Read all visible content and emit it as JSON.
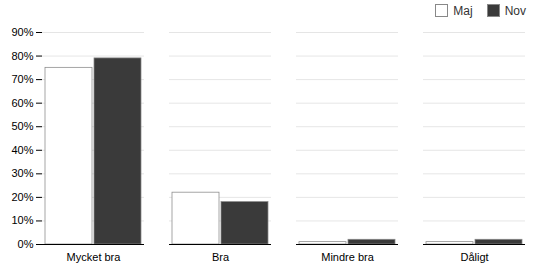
{
  "chart_data": {
    "type": "bar",
    "categories": [
      "Mycket bra",
      "Bra",
      "Mindre bra",
      "Dåligt"
    ],
    "series": [
      {
        "name": "Maj",
        "color": "#ffffff",
        "values": [
          75,
          22,
          1,
          1
        ]
      },
      {
        "name": "Nov",
        "color": "#3a3a3a",
        "values": [
          79,
          18,
          2,
          2
        ]
      }
    ],
    "ylim": [
      0,
      90
    ],
    "yticks": [
      {
        "value": 0,
        "label": "0%"
      },
      {
        "value": 10,
        "label": "10%"
      },
      {
        "value": 20,
        "label": "20%"
      },
      {
        "value": 30,
        "label": "30%"
      },
      {
        "value": 40,
        "label": "40%"
      },
      {
        "value": 50,
        "label": "50%"
      },
      {
        "value": 60,
        "label": "60%"
      },
      {
        "value": 70,
        "label": "70%"
      },
      {
        "value": 80,
        "label": "80%"
      },
      {
        "value": 90,
        "label": "90%"
      }
    ],
    "grid": true,
    "legend": "upper right"
  }
}
